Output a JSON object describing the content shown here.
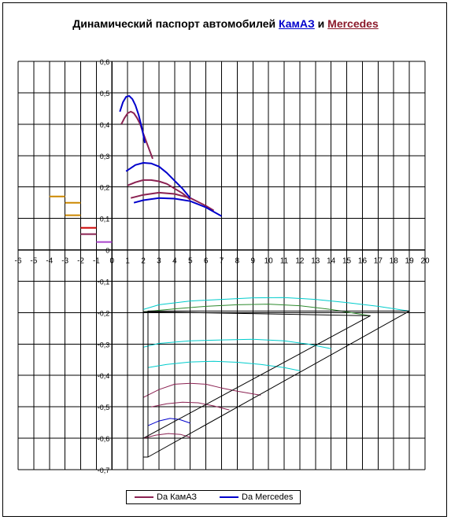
{
  "title": {
    "prefix": "Динамический паспорт автомобилей ",
    "kamaz": "КамАЗ",
    "conj": " и ",
    "mercedes": "Mercedes"
  },
  "legend": {
    "kamaz_label": "Da КамАЗ",
    "mercedes_label": "Da Mercedes"
  },
  "colors": {
    "kamaz": "#8b2252",
    "mercedes": "#0000cc",
    "green": "#2e8b2e",
    "cyan": "#00cccc",
    "orange": "#cc8800",
    "violet": "#aa44cc",
    "red": "#cc0000",
    "olive": "#a0a030",
    "black": "#000000"
  },
  "chart_data": {
    "type": "line",
    "title": "Динамический паспорт автомобилей КамАЗ и Mercedes",
    "xlim": [
      -6,
      20
    ],
    "ylim": [
      -0.7,
      0.6
    ],
    "x_ticks": [
      -6,
      -5,
      -4,
      -3,
      -2,
      -1,
      0,
      1,
      2,
      3,
      4,
      5,
      6,
      7,
      8,
      9,
      10,
      11,
      12,
      13,
      14,
      15,
      16,
      17,
      18,
      19,
      20
    ],
    "y_ticks": [
      "0,6",
      "0,5",
      "0,4",
      "0,3",
      "0,2",
      "0,1",
      "0",
      "-0,1",
      "-0,2",
      "-0,3",
      "-0,4",
      "-0,5",
      "-0,6",
      "-0,7"
    ],
    "grid": true,
    "legend_position": "bottom",
    "series": [
      {
        "name": "Da КамАЗ",
        "role": "kamaz",
        "x": [
          0.6,
          0.8,
          1.0,
          1.2,
          1.4,
          1.6,
          1.8,
          2.0,
          2.3,
          2.6
        ],
        "y": [
          0.4,
          0.42,
          0.435,
          0.44,
          0.435,
          0.42,
          0.4,
          0.37,
          0.33,
          0.29
        ]
      },
      {
        "role": "kamaz",
        "x": [
          1.0,
          1.5,
          2.0,
          2.5,
          3.0,
          3.5,
          4.0,
          4.5,
          5.0
        ],
        "y": [
          0.205,
          0.215,
          0.222,
          0.222,
          0.218,
          0.21,
          0.195,
          0.18,
          0.16
        ]
      },
      {
        "role": "kamaz",
        "x": [
          1.2,
          2.0,
          3.0,
          4.0,
          5.0,
          6.0,
          6.5
        ],
        "y": [
          0.165,
          0.175,
          0.182,
          0.178,
          0.165,
          0.14,
          0.125
        ]
      },
      {
        "name": "Da Mercedes",
        "role": "mercedes",
        "x": [
          0.5,
          0.7,
          0.9,
          1.1,
          1.3,
          1.5,
          1.7,
          1.9,
          2.1
        ],
        "y": [
          0.44,
          0.47,
          0.487,
          0.49,
          0.48,
          0.46,
          0.43,
          0.39,
          0.34
        ]
      },
      {
        "role": "mercedes",
        "x": [
          0.9,
          1.5,
          2.0,
          2.5,
          3.0,
          3.5,
          4.0,
          4.5,
          5.0
        ],
        "y": [
          0.25,
          0.27,
          0.277,
          0.275,
          0.265,
          0.245,
          0.22,
          0.195,
          0.165
        ]
      },
      {
        "role": "mercedes",
        "x": [
          1.4,
          2.0,
          3.0,
          4.0,
          5.0,
          6.0,
          7.0
        ],
        "y": [
          0.15,
          0.158,
          0.165,
          0.163,
          0.155,
          0.135,
          0.107
        ]
      },
      {
        "role": "orange",
        "x": [
          -4.0,
          -3.0
        ],
        "y": [
          0.17,
          0.17
        ]
      },
      {
        "role": "orange",
        "x": [
          -3.0,
          -2.0
        ],
        "y": [
          0.15,
          0.15
        ]
      },
      {
        "role": "orange",
        "x": [
          -3.0,
          -2.0
        ],
        "y": [
          0.11,
          0.11
        ]
      },
      {
        "role": "red",
        "x": [
          -2.0,
          -1.0
        ],
        "y": [
          0.07,
          0.07
        ]
      },
      {
        "role": "kamaz",
        "x": [
          -2.0,
          -1.0
        ],
        "y": [
          0.05,
          0.05
        ]
      },
      {
        "role": "violet",
        "x": [
          -1.0,
          0.0
        ],
        "y": [
          0.025,
          0.025
        ]
      },
      {
        "role": "cyan",
        "x": [
          2.0,
          3.0,
          5.0,
          7.0,
          9.0,
          11.0,
          13.0,
          15.0,
          17.0,
          19.0
        ],
        "y": [
          -0.19,
          -0.175,
          -0.163,
          -0.158,
          -0.153,
          -0.152,
          -0.158,
          -0.168,
          -0.18,
          -0.195
        ]
      },
      {
        "role": "green",
        "x": [
          2.0,
          4.0,
          6.0,
          8.0,
          10.0,
          12.0,
          14.0,
          16.5
        ],
        "y": [
          -0.197,
          -0.188,
          -0.18,
          -0.175,
          -0.173,
          -0.178,
          -0.19,
          -0.21
        ]
      },
      {
        "role": "cyan",
        "x": [
          2.0,
          3.0,
          5.0,
          7.0,
          9.0,
          11.0,
          12.5,
          14.0
        ],
        "y": [
          -0.31,
          -0.298,
          -0.29,
          -0.287,
          -0.285,
          -0.29,
          -0.3,
          -0.315
        ]
      },
      {
        "role": "cyan",
        "x": [
          2.3,
          3.5,
          5.0,
          6.5,
          8.0,
          9.5,
          11.0,
          12.0
        ],
        "y": [
          -0.375,
          -0.365,
          -0.357,
          -0.355,
          -0.358,
          -0.365,
          -0.375,
          -0.385
        ]
      },
      {
        "role": "kamaz",
        "x": [
          2.0,
          3.0,
          4.0,
          5.0,
          6.0,
          7.0,
          8.0,
          9.5
        ],
        "y": [
          -0.47,
          -0.445,
          -0.428,
          -0.425,
          -0.428,
          -0.44,
          -0.45,
          -0.463
        ]
      },
      {
        "role": "kamaz",
        "x": [
          2.5,
          3.5,
          4.5,
          5.5,
          6.5,
          7.5
        ],
        "y": [
          -0.5,
          -0.49,
          -0.485,
          -0.487,
          -0.497,
          -0.51
        ]
      },
      {
        "role": "mercedes",
        "x": [
          2.3,
          3.0,
          3.7,
          4.3,
          5.0
        ],
        "y": [
          -0.56,
          -0.545,
          -0.537,
          -0.54,
          -0.552
        ]
      },
      {
        "role": "kamaz",
        "x": [
          2.0,
          2.8,
          3.6,
          4.4,
          5.0
        ],
        "y": [
          -0.6,
          -0.59,
          -0.585,
          -0.588,
          -0.597
        ]
      },
      {
        "role": "black",
        "x": [
          2.0,
          2.0,
          16.5,
          2.0
        ],
        "y": [
          -0.197,
          -0.6,
          -0.21,
          -0.197
        ]
      },
      {
        "role": "black",
        "x": [
          2.3,
          19.0,
          2.3,
          2.3,
          2.0
        ],
        "y": [
          -0.66,
          -0.195,
          -0.195,
          -0.66,
          -0.66
        ]
      }
    ]
  }
}
